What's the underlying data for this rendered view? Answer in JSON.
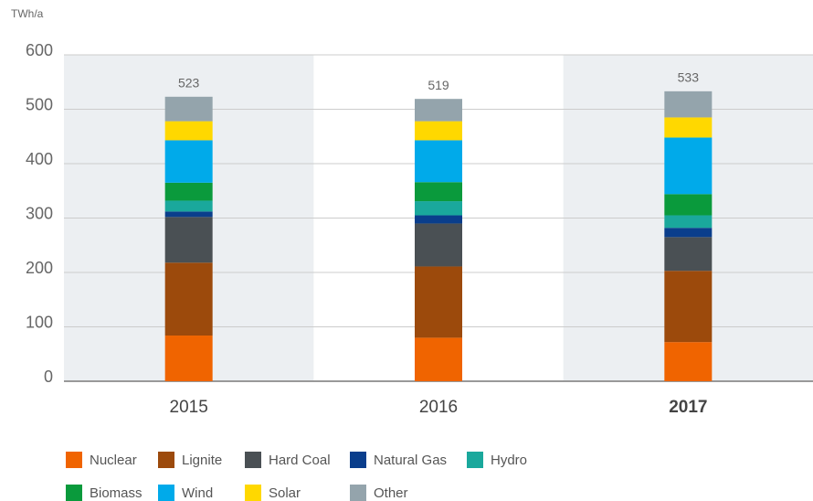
{
  "chart_data": {
    "type": "stacked_bar",
    "y_label": "TWh/a",
    "categories": [
      "2015",
      "2016",
      "2017"
    ],
    "series": [
      {
        "name": "Nuclear",
        "color": "#f06400",
        "values": [
          84,
          80,
          72
        ]
      },
      {
        "name": "Lignite",
        "color": "#9c4a0c",
        "values": [
          134,
          131,
          131
        ]
      },
      {
        "name": "Hard Coal",
        "color": "#4a5054",
        "values": [
          84,
          79,
          62
        ]
      },
      {
        "name": "Natural Gas",
        "color": "#0a3e8c",
        "values": [
          10,
          15,
          17
        ]
      },
      {
        "name": "Hydro",
        "color": "#1aa89c",
        "values": [
          20,
          26,
          23
        ]
      },
      {
        "name": "Biomass",
        "color": "#0a9a3c",
        "values": [
          33,
          35,
          39
        ]
      },
      {
        "name": "Wind",
        "color": "#00aaea",
        "values": [
          78,
          77,
          104
        ]
      },
      {
        "name": "Solar",
        "color": "#ffd800",
        "values": [
          35,
          35,
          37
        ]
      },
      {
        "name": "Other",
        "color": "#94a4ac",
        "values": [
          45,
          41,
          48
        ]
      }
    ],
    "totals": [
      523,
      519,
      533
    ],
    "ylim": [
      0,
      600
    ],
    "yticks": [
      0,
      100,
      200,
      300,
      400,
      500,
      600
    ],
    "grid": true
  }
}
